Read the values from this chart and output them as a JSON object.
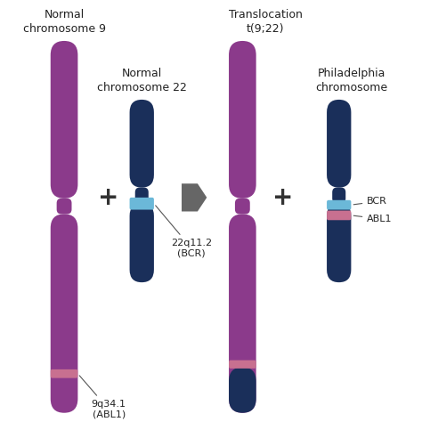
{
  "bg_color": "#ffffff",
  "purple": "#8B3A8B",
  "dark_navy": "#1A2F5A",
  "light_blue": "#6BB8D8",
  "light_pink": "#C87090",
  "gray_arrow": "#666666",
  "text_color": "#222222",
  "title_left": "Normal\nchromosome 9",
  "title_middle": "Normal\nchromosome 22",
  "title_right_top": "Translocation\nt(9;22)",
  "title_right2": "Philadelphia\nchromosome",
  "label_bcr": "22q11.2\n(BCR)",
  "label_abl": "9q34.1\n(ABL1)",
  "label_bcr_short": "BCR",
  "label_abl_short": "ABL1",
  "plus_fontsize": 20,
  "title_fontsize": 9,
  "annot_fontsize": 8
}
